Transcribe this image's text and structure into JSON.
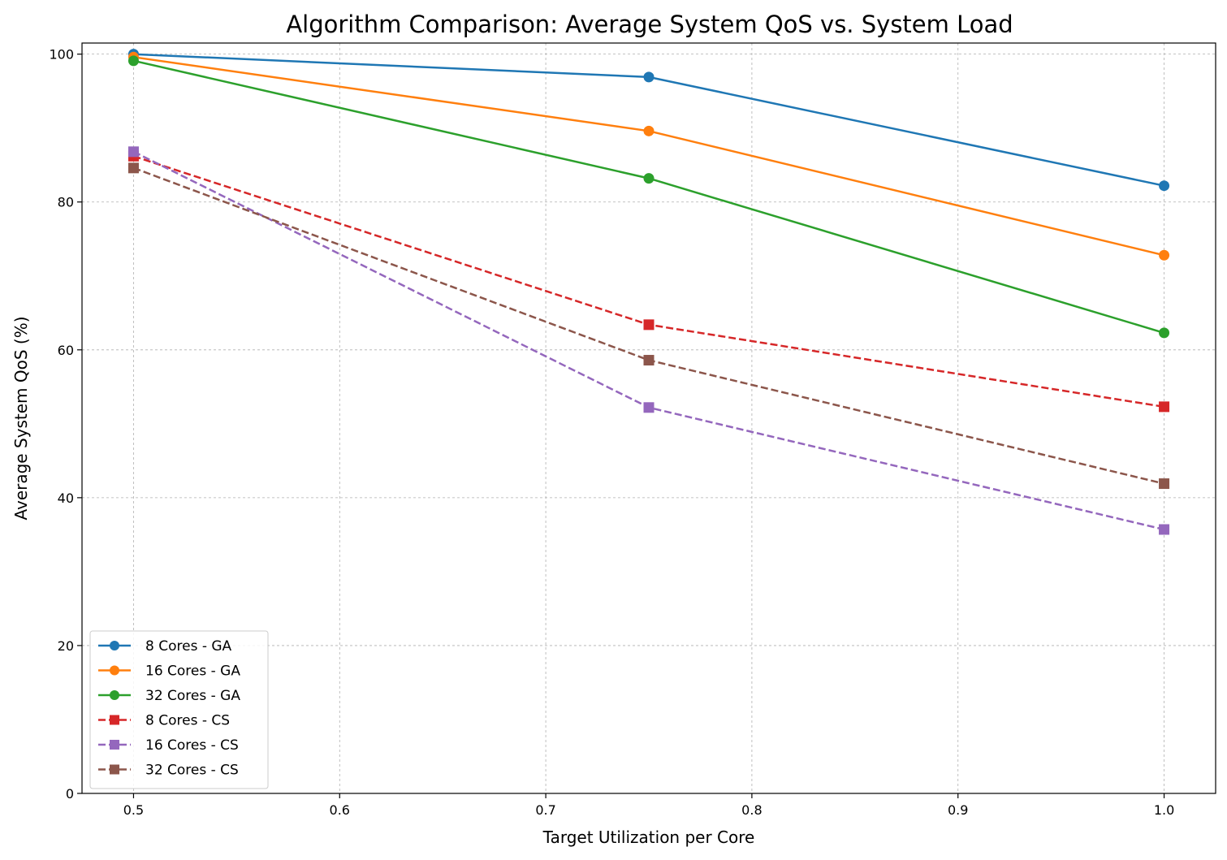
{
  "chart_data": {
    "type": "line",
    "title": "Algorithm Comparison: Average System QoS vs. System Load",
    "xlabel": "Target Utilization per Core",
    "ylabel": "Average System QoS (%)",
    "xlim": [
      0.475,
      1.025
    ],
    "ylim": [
      0,
      101.5
    ],
    "xticks": [
      0.5,
      0.6,
      0.7,
      0.8,
      0.9,
      1.0
    ],
    "xtick_labels": [
      "0.5",
      "0.6",
      "0.7",
      "0.8",
      "0.9",
      "1.0"
    ],
    "yticks": [
      0,
      20,
      40,
      60,
      80,
      100
    ],
    "ytick_labels": [
      "0",
      "20",
      "40",
      "60",
      "80",
      "100"
    ],
    "grid": true,
    "legend_position": "lower-left",
    "x": [
      0.5,
      0.75,
      1.0
    ],
    "series": [
      {
        "name": "8 Cores - GA",
        "values": [
          100.0,
          96.9,
          82.2
        ],
        "color": "#1f77b4",
        "marker": "circle",
        "dashed": false
      },
      {
        "name": "16 Cores - GA",
        "values": [
          99.6,
          89.6,
          72.8
        ],
        "color": "#ff7f0e",
        "marker": "circle",
        "dashed": false
      },
      {
        "name": "32 Cores - GA",
        "values": [
          99.1,
          83.2,
          62.3
        ],
        "color": "#2ca02c",
        "marker": "circle",
        "dashed": false
      },
      {
        "name": "8 Cores - CS",
        "values": [
          86.2,
          63.4,
          52.3
        ],
        "color": "#d62728",
        "marker": "square",
        "dashed": true
      },
      {
        "name": "16 Cores - CS",
        "values": [
          86.8,
          52.2,
          35.7
        ],
        "color": "#9467bd",
        "marker": "square",
        "dashed": true
      },
      {
        "name": "32 Cores - CS",
        "values": [
          84.6,
          58.6,
          41.9
        ],
        "color": "#8c564b",
        "marker": "square",
        "dashed": true
      }
    ]
  }
}
